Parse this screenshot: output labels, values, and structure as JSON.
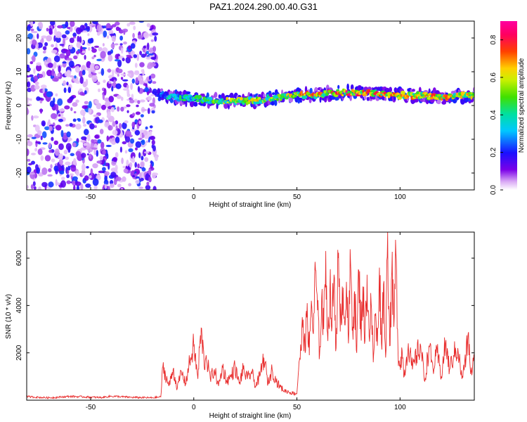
{
  "page": {
    "title": "PAZ1.2024.290.00.40.G31"
  },
  "colorbar": {
    "label": "Normalized spectral amplitude",
    "range": [
      0,
      0.9
    ],
    "ticks": [
      "0.0",
      "0.2",
      "0.4",
      "0.6",
      "0.8"
    ],
    "tick_values": [
      0.0,
      0.2,
      0.4,
      0.6,
      0.8
    ]
  },
  "chart_data": [
    {
      "type": "heatmap",
      "xlabel": "Height of straight line (km)",
      "ylabel": "Frequency (Hz)",
      "xlim": [
        -81,
        136
      ],
      "ylim": [
        -25,
        25
      ],
      "x_ticks": [
        -50,
        0,
        50,
        100
      ],
      "y_ticks": [
        20,
        10,
        0,
        -10,
        -20
      ],
      "x_tick_labels": [
        "-50",
        "0",
        "50",
        "100"
      ],
      "y_tick_labels": [
        "20",
        "10",
        "0",
        "-10",
        "-20"
      ],
      "noise_region_x": [
        -81,
        -18
      ],
      "signal_ridge": [
        {
          "x": -17,
          "freq": 3.5,
          "amp": 0.35
        },
        {
          "x": -10,
          "freq": 2.5,
          "amp": 0.45
        },
        {
          "x": 0,
          "freq": 2.0,
          "amp": 0.5
        },
        {
          "x": 10,
          "freq": 1.5,
          "amp": 0.6
        },
        {
          "x": 20,
          "freq": 1.3,
          "amp": 0.7
        },
        {
          "x": 30,
          "freq": 1.5,
          "amp": 0.65
        },
        {
          "x": 40,
          "freq": 2.5,
          "amp": 0.7
        },
        {
          "x": 50,
          "freq": 3.0,
          "amp": 0.75
        },
        {
          "x": 60,
          "freq": 3.2,
          "amp": 0.8
        },
        {
          "x": 70,
          "freq": 3.8,
          "amp": 0.85
        },
        {
          "x": 80,
          "freq": 3.8,
          "amp": 0.85
        },
        {
          "x": 90,
          "freq": 3.5,
          "amp": 0.8
        },
        {
          "x": 100,
          "freq": 3.0,
          "amp": 0.8
        },
        {
          "x": 110,
          "freq": 3.0,
          "amp": 0.75
        },
        {
          "x": 120,
          "freq": 2.5,
          "amp": 0.75
        },
        {
          "x": 135,
          "freq": 3.0,
          "amp": 0.7
        }
      ]
    },
    {
      "type": "line",
      "xlabel": "Height of straight line (km)",
      "ylabel": "SNR (10 * v/v)",
      "xlim": [
        -81,
        136
      ],
      "ylim": [
        0,
        7100
      ],
      "x_ticks": [
        -50,
        0,
        50,
        100
      ],
      "y_ticks": [
        2000,
        4000,
        6000
      ],
      "x_tick_labels": [
        "-50",
        "0",
        "50",
        "100"
      ],
      "y_tick_labels": [
        "2000",
        "4000",
        "6000"
      ],
      "color": "#e82b2b",
      "series": [
        {
          "x": [
            -81,
            -75,
            -70,
            -60,
            -50,
            -45,
            -40,
            -30,
            -20,
            -16,
            -15,
            -12,
            -10,
            -8,
            -6,
            -4,
            -2,
            0,
            2,
            3,
            4,
            5,
            6,
            8,
            10,
            12,
            14,
            16,
            18,
            20,
            22,
            24,
            26,
            28,
            30,
            32,
            34,
            36,
            38,
            40,
            42,
            44,
            46,
            48,
            50,
            51,
            52,
            53,
            54,
            55,
            56,
            57,
            58,
            59,
            60,
            61,
            62,
            63,
            64,
            65,
            66,
            67,
            68,
            69,
            70,
            71,
            72,
            73,
            74,
            75,
            76,
            77,
            78,
            79,
            80,
            81,
            82,
            83,
            84,
            85,
            86,
            87,
            88,
            89,
            90,
            91,
            92,
            93,
            94,
            95,
            96,
            97,
            98,
            99,
            100,
            101,
            102,
            104,
            106,
            108,
            110,
            112,
            114,
            116,
            118,
            120,
            122,
            124,
            126,
            128,
            130,
            132,
            133,
            134,
            135,
            136
          ],
          "y": [
            150,
            120,
            100,
            160,
            130,
            110,
            170,
            120,
            100,
            140,
            1400,
            600,
            1300,
            500,
            1200,
            700,
            1600,
            2300,
            900,
            2500,
            2700,
            1500,
            1900,
            900,
            1300,
            600,
            1400,
            800,
            1000,
            1400,
            700,
            1300,
            900,
            1200,
            600,
            1000,
            1800,
            700,
            1300,
            800,
            550,
            400,
            350,
            300,
            280,
            1600,
            2100,
            3400,
            2000,
            4100,
            1900,
            4200,
            2800,
            5500,
            3800,
            1900,
            4300,
            3000,
            6300,
            2500,
            4700,
            3100,
            5300,
            2200,
            6000,
            2900,
            4800,
            3500,
            5000,
            2400,
            5800,
            3100,
            4600,
            2000,
            5500,
            3000,
            4800,
            2500,
            5300,
            2700,
            4100,
            1600,
            3600,
            2300,
            5600,
            2400,
            4900,
            1800,
            7100,
            2300,
            5400,
            3100,
            6200,
            2100,
            1500,
            2100,
            1000,
            2400,
            1300,
            1900,
            2300,
            800,
            2300,
            1300,
            2000,
            1000,
            2400,
            1300,
            1900,
            2200,
            900,
            1800,
            2800,
            1400,
            1200,
            1900
          ]
        }
      ]
    }
  ]
}
